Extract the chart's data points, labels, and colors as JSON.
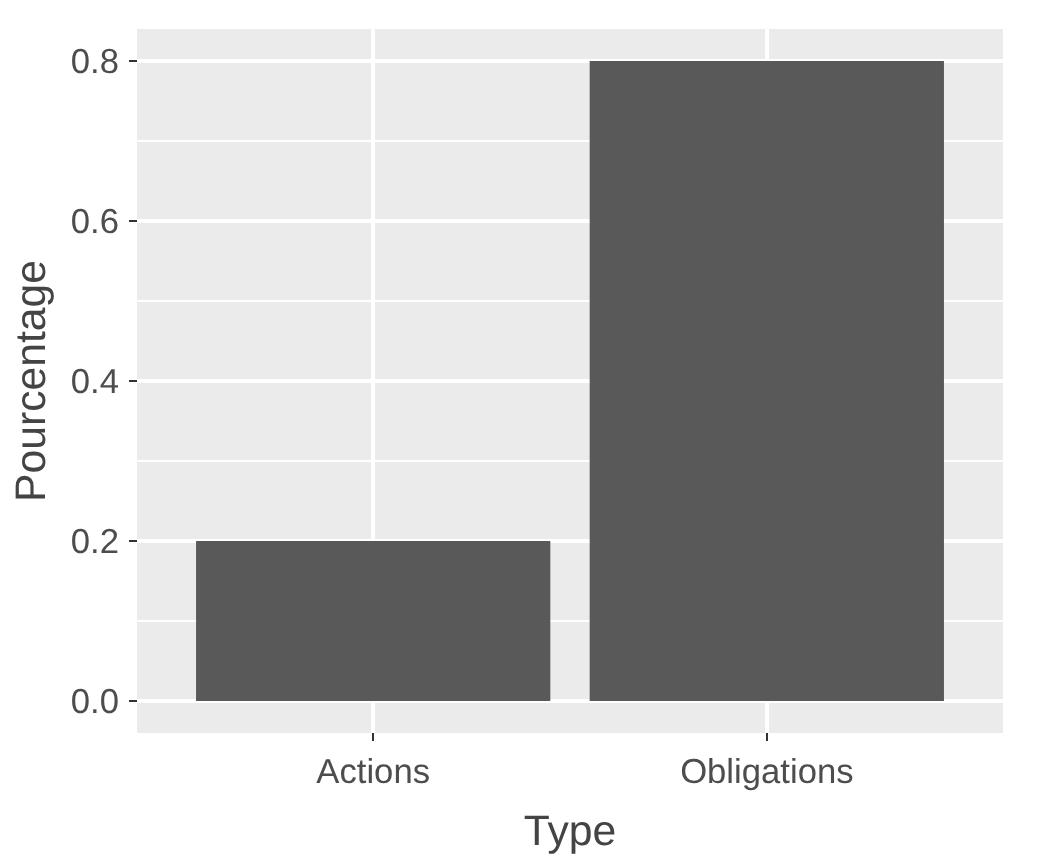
{
  "chart_data": {
    "type": "bar",
    "xlabel": "Type",
    "ylabel": "Pourcentage",
    "categories": [
      "Actions",
      "Obligations"
    ],
    "values": [
      0.2,
      0.8
    ],
    "color": "#595959",
    "ylim": [
      -0.04,
      0.84
    ],
    "yticks": [
      {
        "value": 0.0,
        "label": "0.0"
      },
      {
        "value": 0.2,
        "label": "0.2"
      },
      {
        "value": 0.4,
        "label": "0.4"
      },
      {
        "value": 0.6,
        "label": "0.6"
      },
      {
        "value": 0.8,
        "label": "0.8"
      }
    ],
    "grid": true
  }
}
